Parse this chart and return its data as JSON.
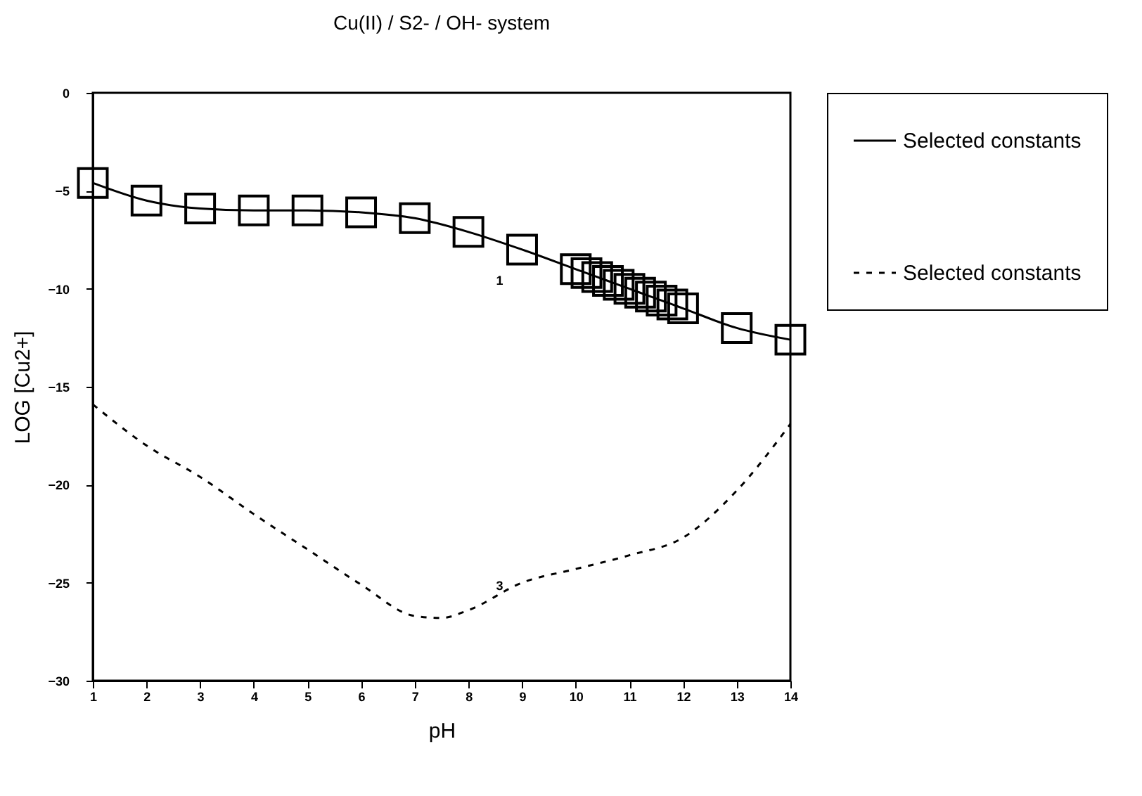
{
  "chart_data": {
    "type": "line",
    "title": "Cu(II) / S2- / OH- system",
    "xlabel": "pH",
    "ylabel": "LOG [Cu2+]",
    "xlim": [
      1,
      14
    ],
    "xticks": [
      1,
      2,
      3,
      4,
      5,
      6,
      7,
      8,
      9,
      10,
      11,
      12,
      13,
      14
    ],
    "ylim": [
      -30,
      0
    ],
    "yticks": [
      -30,
      -25,
      -20,
      -15,
      -10,
      -5,
      0
    ],
    "grid": false,
    "legend": "right",
    "annotations": [
      "1",
      "3"
    ],
    "series": [
      {
        "name": "Selected constants",
        "color": "#000000",
        "marker": "square",
        "line_style": "solid",
        "x": [
          1,
          2,
          3,
          4,
          5,
          6,
          7,
          8,
          9,
          10,
          10.2,
          10.4,
          10.6,
          10.8,
          11,
          11.2,
          11.4,
          11.6,
          11.8,
          12,
          13,
          14
        ],
        "values": [
          -4.6,
          -5.5,
          -5.9,
          -6.0,
          -6.0,
          -6.1,
          -6.4,
          -7.1,
          -8.0,
          -9.0,
          -9.2,
          -9.4,
          -9.6,
          -9.8,
          -10.0,
          -10.2,
          -10.4,
          -10.6,
          -10.8,
          -11.0,
          -12.0,
          -12.6
        ]
      },
      {
        "name": "Selected constants",
        "color": "#000000",
        "marker": "none",
        "line_style": "dashed",
        "x": [
          1,
          2,
          3,
          4,
          5,
          6,
          7,
          7.5,
          8,
          9,
          10,
          11,
          12,
          13,
          14
        ],
        "values": [
          -15.9,
          -18.0,
          -19.6,
          -21.5,
          -23.3,
          -25.1,
          -26.7,
          -26.8,
          -26.4,
          -25.0,
          -24.3,
          -23.6,
          -22.7,
          -20.3,
          -16.9
        ]
      }
    ]
  }
}
